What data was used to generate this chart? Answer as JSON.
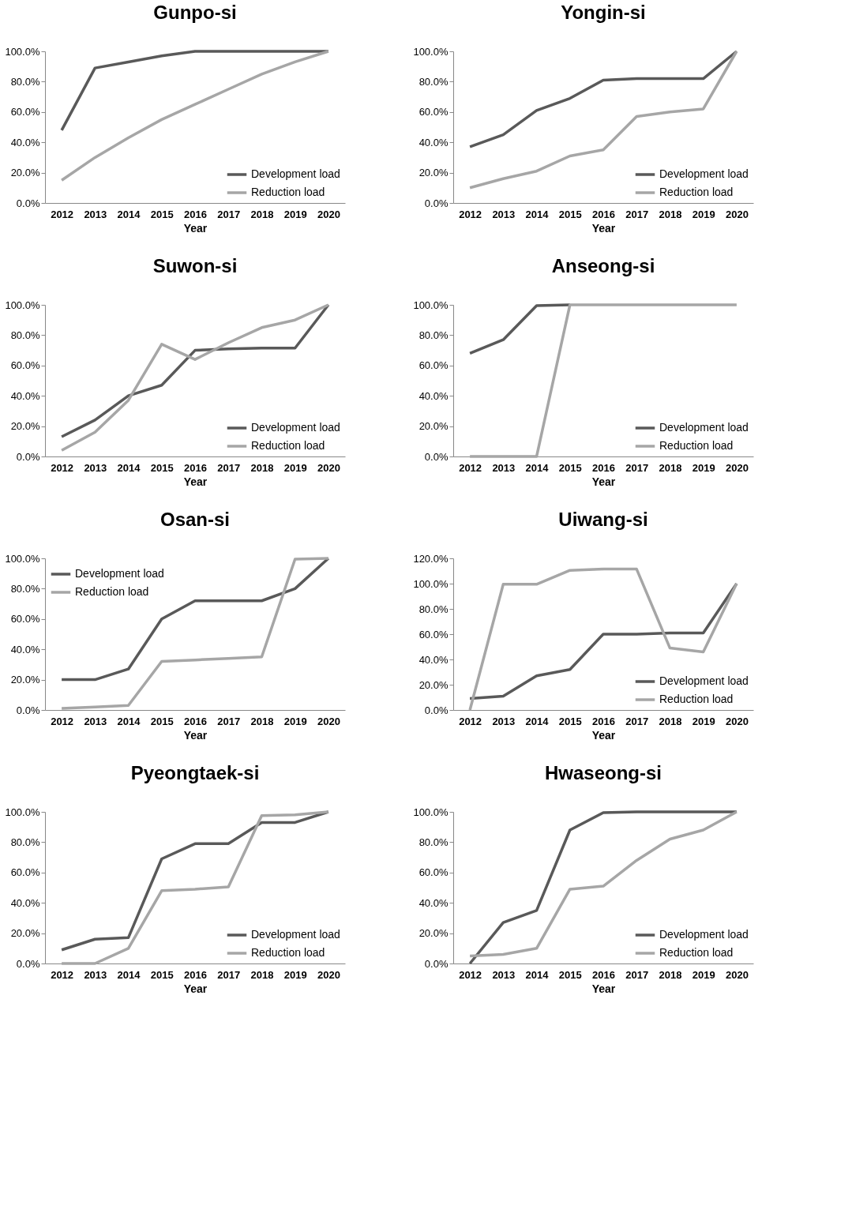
{
  "chart_data": [
    {
      "type": "line",
      "title": "Gunpo-si",
      "xlabel": "Year",
      "categories": [
        "2012",
        "2013",
        "2014",
        "2015",
        "2016",
        "2017",
        "2018",
        "2019",
        "2020"
      ],
      "ylim": [
        0,
        100
      ],
      "yticks": [
        {
          "value": 0,
          "label": "0.0%"
        },
        {
          "value": 20,
          "label": "20.0%"
        },
        {
          "value": 40,
          "label": "40.0%"
        },
        {
          "value": 60,
          "label": "60.0%"
        },
        {
          "value": 80,
          "label": "80.0%"
        },
        {
          "value": 100,
          "label": "100.0%"
        }
      ],
      "grid": false,
      "legend": "bottom right",
      "series": [
        {
          "name": "Development load",
          "color": "#595959",
          "values": [
            48,
            89,
            93,
            97,
            100,
            100,
            100,
            100,
            100
          ]
        },
        {
          "name": "Reduction load",
          "color": "#a6a6a6",
          "values": [
            15,
            30,
            43,
            55,
            65,
            75,
            85,
            93,
            100
          ]
        }
      ]
    },
    {
      "type": "line",
      "title": "Yongin-si",
      "xlabel": "Year",
      "categories": [
        "2012",
        "2013",
        "2014",
        "2015",
        "2016",
        "2017",
        "2018",
        "2019",
        "2020"
      ],
      "ylim": [
        0,
        100
      ],
      "yticks": [
        {
          "value": 0,
          "label": "0.0%"
        },
        {
          "value": 20,
          "label": "20.0%"
        },
        {
          "value": 40,
          "label": "40.0%"
        },
        {
          "value": 60,
          "label": "60.0%"
        },
        {
          "value": 80,
          "label": "80.0%"
        },
        {
          "value": 100,
          "label": "100.0%"
        }
      ],
      "grid": false,
      "legend": "bottom right",
      "series": [
        {
          "name": "Development load",
          "color": "#595959",
          "values": [
            37,
            45,
            61,
            69,
            81,
            82,
            82,
            82,
            100
          ]
        },
        {
          "name": "Reduction load",
          "color": "#a6a6a6",
          "values": [
            10,
            16,
            21,
            31,
            35,
            57,
            60,
            62,
            100
          ]
        }
      ]
    },
    {
      "type": "line",
      "title": "Suwon-si",
      "xlabel": "Year",
      "categories": [
        "2012",
        "2013",
        "2014",
        "2015",
        "2016",
        "2017",
        "2018",
        "2019",
        "2020"
      ],
      "ylim": [
        0,
        100
      ],
      "yticks": [
        {
          "value": 0,
          "label": "0.0%"
        },
        {
          "value": 20,
          "label": "20.0%"
        },
        {
          "value": 40,
          "label": "40.0%"
        },
        {
          "value": 60,
          "label": "60.0%"
        },
        {
          "value": 80,
          "label": "80.0%"
        },
        {
          "value": 100,
          "label": "100.0%"
        }
      ],
      "grid": false,
      "legend": "bottom right",
      "series": [
        {
          "name": "Development load",
          "color": "#595959",
          "values": [
            13,
            24,
            40,
            47,
            70,
            71,
            71.5,
            71.5,
            100
          ]
        },
        {
          "name": "Reduction load",
          "color": "#a6a6a6",
          "values": [
            4,
            16,
            37,
            74,
            64,
            75,
            85,
            90,
            100
          ]
        }
      ]
    },
    {
      "type": "line",
      "title": "Anseong-si",
      "xlabel": "Year",
      "categories": [
        "2012",
        "2013",
        "2014",
        "2015",
        "2016",
        "2017",
        "2018",
        "2019",
        "2020"
      ],
      "ylim": [
        0,
        100
      ],
      "yticks": [
        {
          "value": 0,
          "label": "0.0%"
        },
        {
          "value": 20,
          "label": "20.0%"
        },
        {
          "value": 40,
          "label": "40.0%"
        },
        {
          "value": 60,
          "label": "60.0%"
        },
        {
          "value": 80,
          "label": "80.0%"
        },
        {
          "value": 100,
          "label": "100.0%"
        }
      ],
      "grid": false,
      "legend": "bottom right",
      "series": [
        {
          "name": "Development load",
          "color": "#595959",
          "values": [
            68,
            77,
            99.5,
            100,
            null,
            null,
            null,
            null,
            null
          ]
        },
        {
          "name": "Reduction load",
          "color": "#a6a6a6",
          "values": [
            0,
            0,
            0,
            100,
            100,
            100,
            100,
            100,
            100
          ]
        }
      ]
    },
    {
      "type": "line",
      "title": "Osan-si",
      "xlabel": "Year",
      "categories": [
        "2012",
        "2013",
        "2014",
        "2015",
        "2016",
        "2017",
        "2018",
        "2019",
        "2020"
      ],
      "ylim": [
        0,
        100
      ],
      "yticks": [
        {
          "value": 0,
          "label": "0.0%"
        },
        {
          "value": 20,
          "label": "20.0%"
        },
        {
          "value": 40,
          "label": "40.0%"
        },
        {
          "value": 60,
          "label": "60.0%"
        },
        {
          "value": 80,
          "label": "80.0%"
        },
        {
          "value": 100,
          "label": "100.0%"
        }
      ],
      "grid": false,
      "legend": "top left",
      "series": [
        {
          "name": "Development load",
          "color": "#595959",
          "values": [
            20,
            20,
            27,
            60,
            72,
            72,
            72,
            80,
            100
          ]
        },
        {
          "name": "Reduction load",
          "color": "#a6a6a6",
          "values": [
            1,
            2,
            3,
            32,
            33,
            34,
            35,
            99.5,
            100
          ]
        }
      ]
    },
    {
      "type": "line",
      "title": "Uiwang-si",
      "xlabel": "Year",
      "categories": [
        "2012",
        "2013",
        "2014",
        "2015",
        "2016",
        "2017",
        "2018",
        "2019",
        "2020"
      ],
      "ylim": [
        0,
        120
      ],
      "yticks": [
        {
          "value": 0,
          "label": "0.0%"
        },
        {
          "value": 20,
          "label": "20.0%"
        },
        {
          "value": 40,
          "label": "40.0%"
        },
        {
          "value": 60,
          "label": "60.0%"
        },
        {
          "value": 80,
          "label": "80.0%"
        },
        {
          "value": 100,
          "label": "100.0%"
        },
        {
          "value": 120,
          "label": "120.0%"
        }
      ],
      "grid": false,
      "legend": "bottom right",
      "series": [
        {
          "name": "Development load",
          "color": "#595959",
          "values": [
            9,
            11,
            27,
            32,
            60,
            60,
            61,
            61,
            100
          ]
        },
        {
          "name": "Reduction load",
          "color": "#a6a6a6",
          "values": [
            0,
            99.5,
            99.5,
            110.5,
            111.5,
            111.5,
            49,
            46,
            100
          ]
        }
      ]
    },
    {
      "type": "line",
      "title": "Pyeongtaek-si",
      "xlabel": "Year",
      "categories": [
        "2012",
        "2013",
        "2014",
        "2015",
        "2016",
        "2017",
        "2018",
        "2019",
        "2020"
      ],
      "ylim": [
        0,
        100
      ],
      "yticks": [
        {
          "value": 0,
          "label": "0.0%"
        },
        {
          "value": 20,
          "label": "20.0%"
        },
        {
          "value": 40,
          "label": "40.0%"
        },
        {
          "value": 60,
          "label": "60.0%"
        },
        {
          "value": 80,
          "label": "80.0%"
        },
        {
          "value": 100,
          "label": "100.0%"
        }
      ],
      "grid": false,
      "legend": "bottom right",
      "series": [
        {
          "name": "Development load",
          "color": "#595959",
          "values": [
            9,
            16,
            17,
            69,
            79,
            79,
            93,
            93,
            100
          ]
        },
        {
          "name": "Reduction load",
          "color": "#a6a6a6",
          "values": [
            0,
            0,
            10,
            48,
            49,
            50.5,
            97.5,
            98,
            100
          ]
        }
      ]
    },
    {
      "type": "line",
      "title": "Hwaseong-si",
      "xlabel": "Year",
      "categories": [
        "2012",
        "2013",
        "2014",
        "2015",
        "2016",
        "2017",
        "2018",
        "2019",
        "2020"
      ],
      "ylim": [
        0,
        100
      ],
      "yticks": [
        {
          "value": 0,
          "label": "0.0%"
        },
        {
          "value": 20,
          "label": "20.0%"
        },
        {
          "value": 40,
          "label": "40.0%"
        },
        {
          "value": 60,
          "label": "60.0%"
        },
        {
          "value": 80,
          "label": "80.0%"
        },
        {
          "value": 100,
          "label": "100.0%"
        }
      ],
      "grid": false,
      "legend": "bottom right",
      "series": [
        {
          "name": "Development load",
          "color": "#595959",
          "values": [
            0,
            27,
            35,
            88,
            99.5,
            100,
            100,
            100,
            100
          ]
        },
        {
          "name": "Reduction load",
          "color": "#a6a6a6",
          "values": [
            5,
            6,
            10,
            49,
            51,
            68,
            82,
            88,
            100
          ]
        }
      ]
    }
  ]
}
